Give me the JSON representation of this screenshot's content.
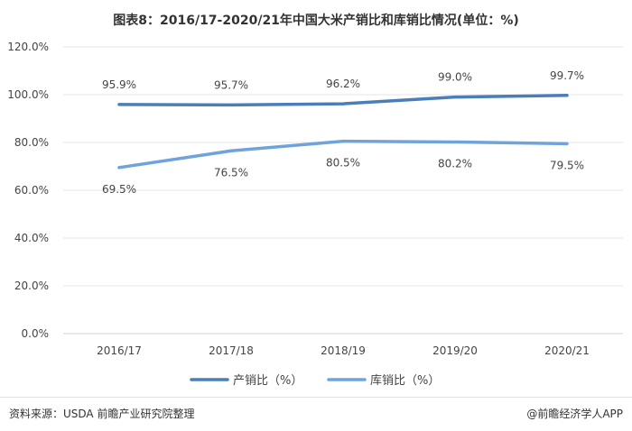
{
  "title": "图表8：2016/17-2020/21年中国大米产销比和库销比情况(单位：%)",
  "source": "资料来源：USDA 前瞻产业研究院整理",
  "credit": "@前瞻经济学人APP",
  "colors": {
    "series1": "#4a7ebb",
    "series2": "#6fa3db",
    "grid": "#e6e6e6"
  },
  "chart_data": {
    "type": "line",
    "x": [
      "2016/17",
      "2017/18",
      "2018/19",
      "2019/20",
      "2020/21"
    ],
    "y_ticks": [
      "0.0%",
      "20.0%",
      "40.0%",
      "60.0%",
      "80.0%",
      "100.0%",
      "120.0%"
    ],
    "ylim": [
      0,
      120
    ],
    "grid": true,
    "legend_position": "bottom",
    "series": [
      {
        "name": "产销比（%）",
        "values": [
          95.9,
          95.7,
          96.2,
          99.0,
          99.7
        ],
        "labels": [
          "95.9%",
          "95.7%",
          "96.2%",
          "99.0%",
          "99.7%"
        ]
      },
      {
        "name": "库销比（%）",
        "values": [
          69.5,
          76.5,
          80.5,
          80.2,
          79.5
        ],
        "labels": [
          "69.5%",
          "76.5%",
          "80.5%",
          "80.2%",
          "79.5%"
        ]
      }
    ]
  }
}
